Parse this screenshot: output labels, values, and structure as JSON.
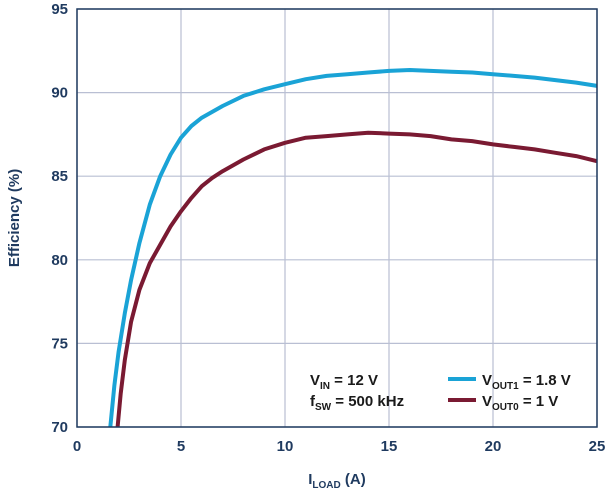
{
  "chart_data": {
    "type": "line",
    "xlabel": {
      "main": "I",
      "sub": "LOAD",
      "tail": " (A)"
    },
    "ylabel": "Efficiency (%)",
    "xlim": [
      0,
      25
    ],
    "ylim": [
      70,
      95
    ],
    "x_ticks": [
      "0",
      "5",
      "10",
      "15",
      "20",
      "25"
    ],
    "y_ticks": [
      "70",
      "75",
      "80",
      "85",
      "90",
      "95"
    ],
    "grid": true,
    "legend_position": "bottom-right",
    "conditions": [
      {
        "main": "V",
        "sub": "IN",
        "tail": " = 12 V"
      },
      {
        "main": "f",
        "sub": "SW",
        "tail": " = 500 kHz"
      }
    ],
    "series": [
      {
        "name": "V_OUT1 = 1.8 V",
        "legend": {
          "main": "V",
          "sub": "OUT1",
          "tail": " = 1.8 V"
        },
        "color": "#1aa3d6",
        "x": [
          1.6,
          1.8,
          2.0,
          2.3,
          2.6,
          3.0,
          3.5,
          4.0,
          4.5,
          5.0,
          5.5,
          6.0,
          7.0,
          8.0,
          9.0,
          10.0,
          11.0,
          12.0,
          13.0,
          14.0,
          15.0,
          16.0,
          17.0,
          18.0,
          19.0,
          20.0,
          21.0,
          22.0,
          23.0,
          24.0,
          25.0
        ],
        "y": [
          70.0,
          72.5,
          74.5,
          76.8,
          78.8,
          81.0,
          83.3,
          85.0,
          86.3,
          87.3,
          88.0,
          88.5,
          89.2,
          89.8,
          90.2,
          90.5,
          90.8,
          91.0,
          91.1,
          91.2,
          91.3,
          91.35,
          91.3,
          91.25,
          91.2,
          91.1,
          91.0,
          90.9,
          90.75,
          90.6,
          90.4
        ]
      },
      {
        "name": "V_OUT0 = 1 V",
        "legend": {
          "main": "V",
          "sub": "OUT0",
          "tail": " = 1 V"
        },
        "color": "#7a1a32",
        "x": [
          1.95,
          2.1,
          2.3,
          2.6,
          3.0,
          3.5,
          4.0,
          4.5,
          5.0,
          5.5,
          6.0,
          6.5,
          7.0,
          8.0,
          9.0,
          10.0,
          11.0,
          12.0,
          13.0,
          14.0,
          15.0,
          16.0,
          17.0,
          18.0,
          19.0,
          20.0,
          21.0,
          22.0,
          23.0,
          24.0,
          25.0
        ],
        "y": [
          70.0,
          72.0,
          74.0,
          76.3,
          78.2,
          79.8,
          80.9,
          82.0,
          82.9,
          83.7,
          84.4,
          84.9,
          85.3,
          86.0,
          86.6,
          87.0,
          87.3,
          87.4,
          87.5,
          87.6,
          87.55,
          87.5,
          87.4,
          87.2,
          87.1,
          86.9,
          86.75,
          86.6,
          86.4,
          86.2,
          85.9
        ]
      }
    ]
  }
}
